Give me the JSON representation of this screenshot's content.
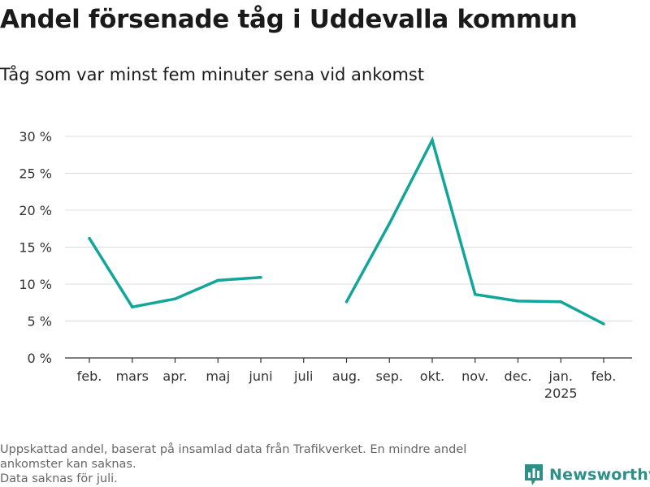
{
  "header": {
    "title": "Andel försenade tåg i Uddevalla kommun",
    "subtitle": "Tåg som var minst fem minuter sena vid ankomst"
  },
  "footer": {
    "lines": [
      "Uppskattad andel, baserat på insamlad data från Trafikverket. En mindre andel",
      "ankomster kan saknas.",
      "Data saknas för juli."
    ]
  },
  "brand": {
    "name": "Newsworthy",
    "color": "#2e8f87"
  },
  "chart_data": {
    "type": "line",
    "categories": [
      "feb.",
      "mars",
      "apr.",
      "maj",
      "juni",
      "juli",
      "aug.",
      "sep.",
      "okt.",
      "nov.",
      "dec.",
      "jan.",
      "feb."
    ],
    "category_sublabels": [
      "",
      "",
      "",
      "",
      "",
      "",
      "",
      "",
      "",
      "",
      "",
      "2025",
      ""
    ],
    "series": [
      {
        "values": [
          16.2,
          6.9,
          8.0,
          10.5,
          10.9,
          null,
          7.6,
          18.2,
          29.5,
          8.6,
          7.7,
          7.6,
          4.6
        ],
        "color": "#12a59a"
      }
    ],
    "y_ticks": [
      "0 %",
      "5 %",
      "10 %",
      "15 %",
      "20 %",
      "25 %",
      "30 %"
    ],
    "ylim": [
      0,
      30
    ],
    "grid": true,
    "xlabel": "",
    "ylabel": ""
  }
}
